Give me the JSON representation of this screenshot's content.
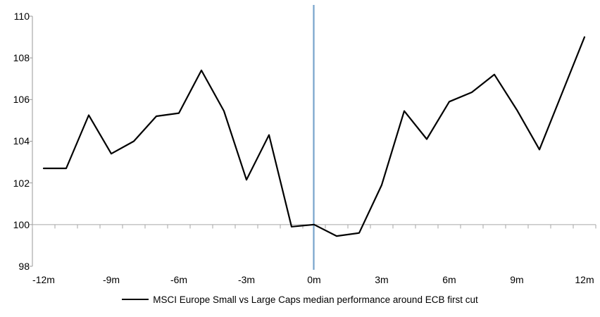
{
  "chart_data": {
    "type": "line",
    "title": "",
    "x_axis_unit": "months around ECB first cut",
    "x": [
      -12,
      -11,
      -10,
      -9,
      -8,
      -7,
      -6,
      -5,
      -4,
      -3,
      -2,
      -1,
      0,
      1,
      2,
      3,
      4,
      5,
      6,
      7,
      8,
      9,
      10,
      11,
      12
    ],
    "series": [
      {
        "name": "MSCI Europe Small vs Large Caps median performance around ECB first cut",
        "color": "#000000",
        "values": [
          102.7,
          102.7,
          105.25,
          103.4,
          104.0,
          105.2,
          105.35,
          107.4,
          105.45,
          102.15,
          104.3,
          99.9,
          100.0,
          99.45,
          99.6,
          101.9,
          105.45,
          104.1,
          105.9,
          106.35,
          107.2,
          105.5,
          103.6,
          106.3,
          109.0
        ]
      }
    ],
    "x_tick_months": [
      -12,
      -9,
      -6,
      -3,
      0,
      3,
      6,
      9,
      12
    ],
    "x_tick_labels": [
      "-12m",
      "-9m",
      "-6m",
      "-3m",
      "0m",
      "3m",
      "6m",
      "9m",
      "12m"
    ],
    "y_ticks": [
      98,
      100,
      102,
      104,
      106,
      108,
      110
    ],
    "ylim": [
      98,
      110
    ],
    "category_axis_crosses_at": 100,
    "event_line": {
      "x_month": 0,
      "color": "#77A4CB"
    },
    "legend_position": "bottom",
    "grid": false,
    "colors": {
      "series_line": "#000000",
      "event_line": "#77A4CB",
      "value_axis": "#999999",
      "category_axis": "#A6A6A6",
      "labels": "#000000",
      "background": "#FFFFFF"
    }
  }
}
